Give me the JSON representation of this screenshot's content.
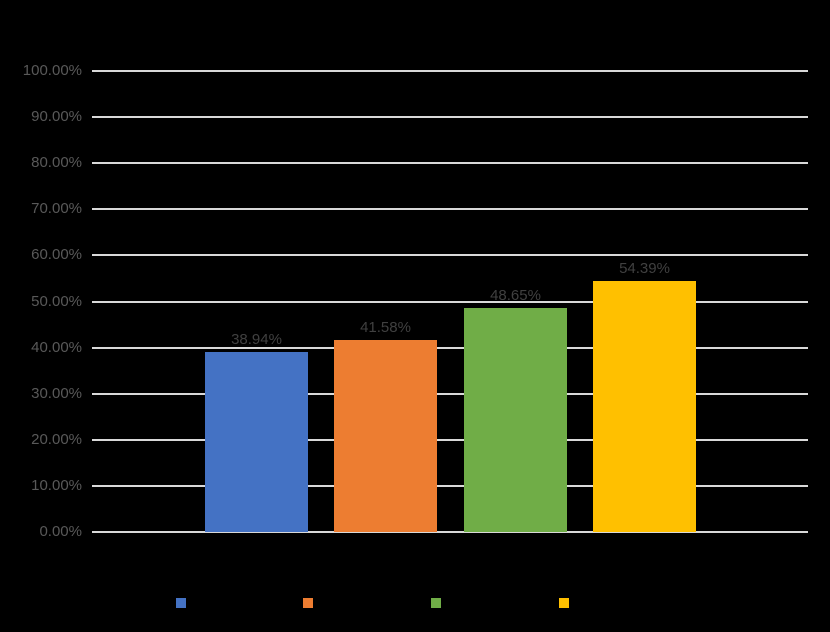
{
  "chart_data": {
    "type": "bar",
    "title": "",
    "values": [
      38.94,
      41.58,
      48.65,
      54.39
    ],
    "data_labels": [
      "38.94%",
      "41.58%",
      "48.65%",
      "54.39%"
    ],
    "bar_colors": [
      "#4472C4",
      "#ED7D31",
      "#70AD47",
      "#FFC000"
    ],
    "ytick_labels": [
      "0.00%",
      "10.00%",
      "20.00%",
      "30.00%",
      "40.00%",
      "50.00%",
      "60.00%",
      "70.00%",
      "80.00%",
      "90.00%",
      "100.00%"
    ],
    "ytick_values": [
      0,
      10,
      20,
      30,
      40,
      50,
      60,
      70,
      80,
      90,
      100
    ],
    "ylim": [
      0,
      100
    ],
    "grid": true,
    "legend_position": "bottom",
    "legend_marker_colors": [
      "#4472C4",
      "#ED7D31",
      "#70AD47",
      "#FFC000"
    ]
  },
  "colors": {
    "background": "#000000",
    "gridline": "#D9D9D9",
    "axis_label": "#595959",
    "data_label": "#404040"
  }
}
